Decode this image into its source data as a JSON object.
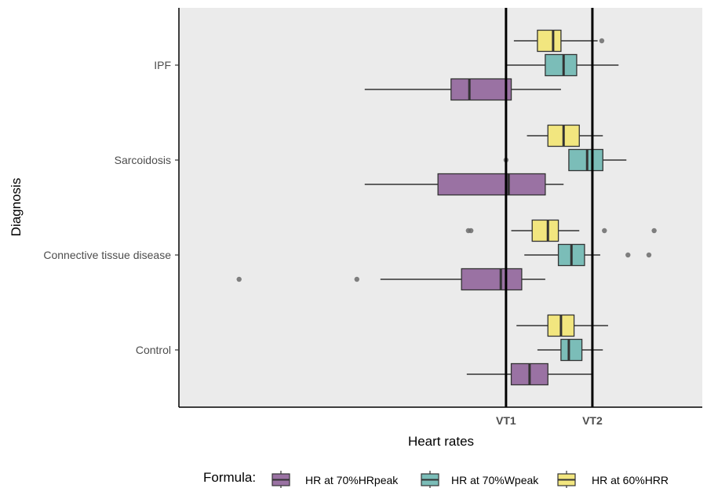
{
  "chart_data": {
    "type": "boxplot",
    "orientation": "horizontal",
    "title": "",
    "xlabel": "Heart rates",
    "ylabel": "Diagnosis",
    "xlim": [
      0,
      100
    ],
    "x_ticks_shown": false,
    "categories": [
      "IPF",
      "Sarcoidosis",
      "Connective tissue disease",
      "Control"
    ],
    "reference_lines": [
      {
        "label": "VT1",
        "x": 62.5
      },
      {
        "label": "VT2",
        "x": 79.0
      }
    ],
    "legend": {
      "title": "Formula:",
      "position": "bottom"
    },
    "series": [
      {
        "name": "HR at 60%HRR",
        "color": "#F2E67F",
        "boxes": [
          {
            "category": "IPF",
            "whisker_low": 64.0,
            "q1": 68.5,
            "median": 71.5,
            "q3": 73.0,
            "whisker_high": 80.0,
            "outliers": [
              80.8
            ]
          },
          {
            "category": "Sarcoidosis",
            "whisker_low": 66.5,
            "q1": 70.5,
            "median": 73.5,
            "q3": 76.5,
            "whisker_high": 81.0,
            "outliers": []
          },
          {
            "category": "Connective tissue disease",
            "whisker_low": 63.5,
            "q1": 67.5,
            "median": 70.5,
            "q3": 72.5,
            "whisker_high": 76.5,
            "outliers": [
              55.3,
              55.8,
              81.3,
              90.8
            ]
          },
          {
            "category": "Control",
            "whisker_low": 64.5,
            "q1": 70.5,
            "median": 73.0,
            "q3": 75.5,
            "whisker_high": 82.0,
            "outliers": []
          }
        ]
      },
      {
        "name": "HR at 70%Wpeak",
        "color": "#7BBDB8",
        "boxes": [
          {
            "category": "IPF",
            "whisker_low": 62.5,
            "q1": 70.0,
            "median": 73.5,
            "q3": 76.0,
            "whisker_high": 84.0,
            "outliers": []
          },
          {
            "category": "Sarcoidosis",
            "whisker_low": 74.5,
            "q1": 74.5,
            "median": 78.0,
            "q3": 81.0,
            "whisker_high": 85.5,
            "outliers": [
              62.5
            ]
          },
          {
            "category": "Connective tissue disease",
            "whisker_low": 66.0,
            "q1": 72.5,
            "median": 75.0,
            "q3": 77.5,
            "whisker_high": 80.5,
            "outliers": [
              85.8,
              89.8
            ]
          },
          {
            "category": "Control",
            "whisker_low": 68.5,
            "q1": 73.0,
            "median": 74.5,
            "q3": 77.0,
            "whisker_high": 81.0,
            "outliers": []
          }
        ]
      },
      {
        "name": "HR at 70%HRpeak",
        "color": "#9A72A3",
        "boxes": [
          {
            "category": "IPF",
            "whisker_low": 35.5,
            "q1": 52.0,
            "median": 55.5,
            "q3": 63.5,
            "whisker_high": 73.0,
            "outliers": []
          },
          {
            "category": "Sarcoidosis",
            "whisker_low": 35.5,
            "q1": 49.5,
            "median": 63.0,
            "q3": 70.0,
            "whisker_high": 73.5,
            "outliers": []
          },
          {
            "category": "Connective tissue disease",
            "whisker_low": 38.5,
            "q1": 54.0,
            "median": 61.5,
            "q3": 65.5,
            "whisker_high": 70.0,
            "outliers": [
              11.5,
              34.0
            ]
          },
          {
            "category": "Control",
            "whisker_low": 55.0,
            "q1": 63.5,
            "median": 67.0,
            "q3": 70.5,
            "whisker_high": 79.0,
            "outliers": []
          }
        ]
      }
    ],
    "legend_order": [
      "HR at 70%HRpeak",
      "HR at 70%Wpeak",
      "HR at 60%HRR"
    ]
  }
}
